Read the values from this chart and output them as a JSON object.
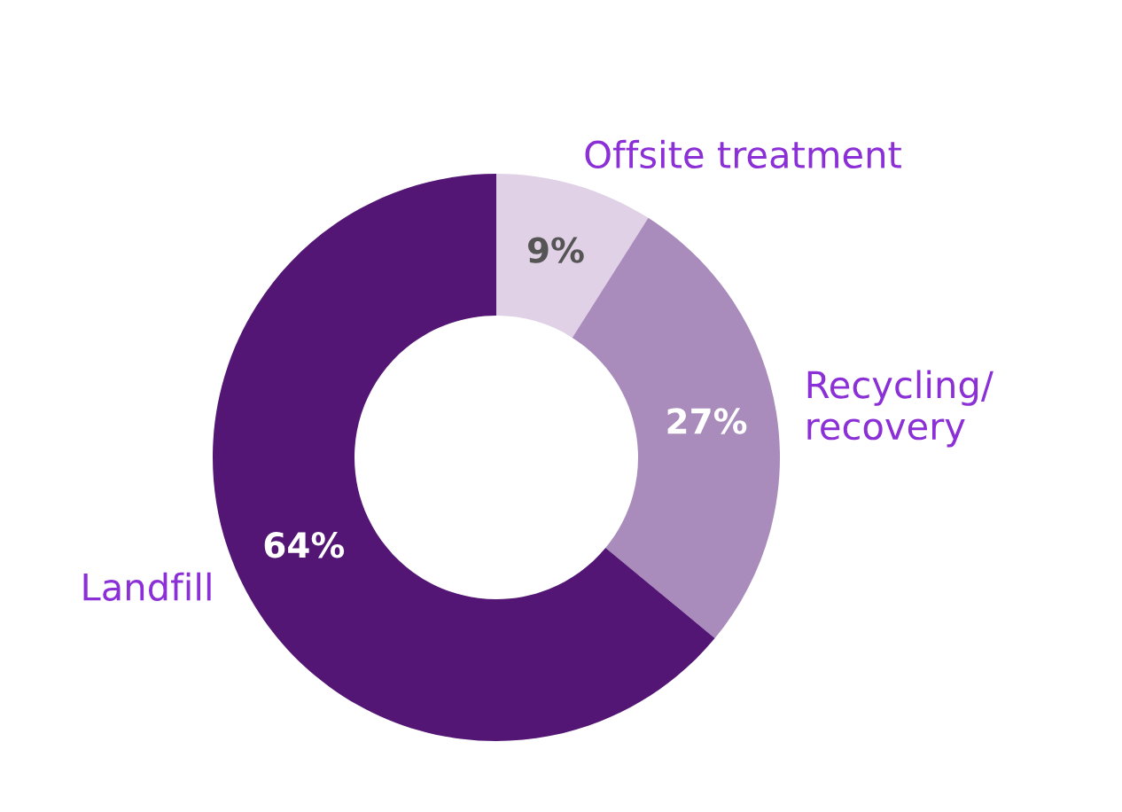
{
  "chart_data": {
    "type": "donut",
    "categories": [
      "Offsite treatment",
      "Recycling/\nrecovery",
      "Landfill"
    ],
    "values": [
      9,
      27,
      64
    ],
    "colors": [
      "#e0d1e7",
      "#a98bbc",
      "#541675"
    ],
    "value_labels": [
      "9%",
      "27%",
      "64%"
    ],
    "legend": false
  }
}
